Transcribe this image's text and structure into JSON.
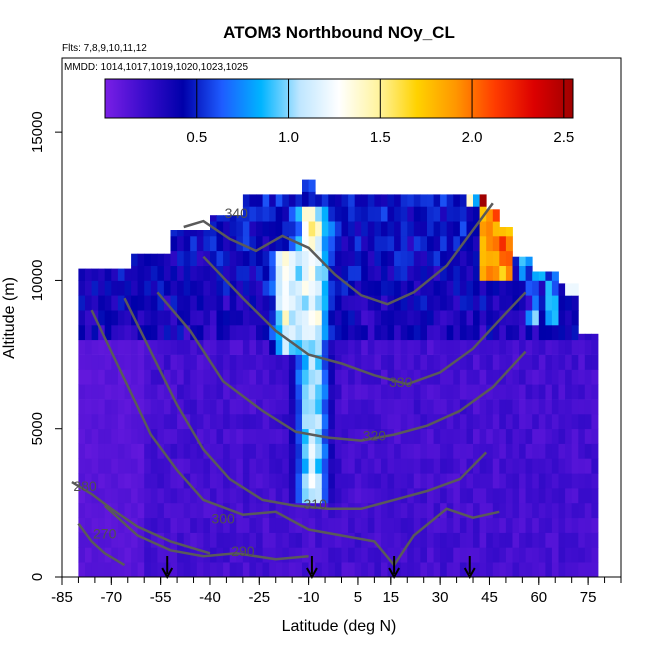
{
  "chart_data": {
    "type": "heatmap",
    "title": "ATOM3 Northbound NOy_CL",
    "flights_label": "Flts: 7,8,9,10,11,12",
    "mmdd_label": "MMDD: 1014,1017,1019,1020,1023,1025",
    "xlabel": "Latitude (deg N)",
    "ylabel": "Altitude (m)",
    "xlim": [
      -85,
      85
    ],
    "ylim": [
      0,
      17500
    ],
    "x_ticks": [
      "-85",
      "-70",
      "-55",
      "-40",
      "-25",
      "-10",
      "5",
      "15",
      "30",
      "45",
      "60",
      "75"
    ],
    "x_tick_values": [
      -85,
      -70,
      -55,
      -40,
      -25,
      -10,
      5,
      15,
      30,
      45,
      60,
      75
    ],
    "y_ticks": [
      "0",
      "5000",
      "10000",
      "15000"
    ],
    "y_tick_values": [
      0,
      5000,
      10000,
      15000
    ],
    "colorbar": {
      "min": 0.0,
      "max": 2.55,
      "ticks": [
        "0.5",
        "1.0",
        "1.5",
        "2.0",
        "2.5"
      ],
      "tick_values": [
        0.5,
        1.0,
        1.5,
        2.0,
        2.5
      ],
      "colors": [
        "#7a1fe6",
        "#3a0ccc",
        "#0000aa",
        "#1e5cff",
        "#00b4ff",
        "#bfe6ff",
        "#ffffff",
        "#fff4a0",
        "#ffd200",
        "#ff9600",
        "#ff3c00",
        "#dc0000",
        "#a00000"
      ]
    },
    "theta_contours": [
      {
        "label": "270",
        "points": [
          [
            -80,
            1800
          ],
          [
            -76,
            1200
          ],
          [
            -72,
            800
          ],
          [
            -66,
            400
          ]
        ]
      },
      {
        "label": "280",
        "points": [
          [
            -82,
            3200
          ],
          [
            -76,
            2800
          ],
          [
            -70,
            2300
          ],
          [
            -62,
            1700
          ],
          [
            -52,
            1200
          ],
          [
            -40,
            800
          ]
        ]
      },
      {
        "label": "290",
        "points": [
          [
            -72,
            2400
          ],
          [
            -62,
            1400
          ],
          [
            -52,
            900
          ],
          [
            -42,
            700
          ],
          [
            -32,
            800
          ],
          [
            -20,
            600
          ],
          [
            -10,
            700
          ]
        ]
      },
      {
        "label": "300",
        "points": [
          [
            -76,
            9000
          ],
          [
            -70,
            7600
          ],
          [
            -64,
            6200
          ],
          [
            -58,
            4800
          ],
          [
            -50,
            3600
          ],
          [
            -42,
            2600
          ],
          [
            -30,
            2100
          ],
          [
            -20,
            2200
          ],
          [
            -10,
            1600
          ],
          [
            0,
            1400
          ],
          [
            10,
            1200
          ],
          [
            16,
            400
          ],
          [
            22,
            1400
          ],
          [
            32,
            2300
          ],
          [
            40,
            2000
          ],
          [
            48,
            2200
          ]
        ]
      },
      {
        "label": "310",
        "points": [
          [
            -66,
            9400
          ],
          [
            -58,
            7600
          ],
          [
            -50,
            5800
          ],
          [
            -42,
            4300
          ],
          [
            -34,
            3300
          ],
          [
            -24,
            2600
          ],
          [
            -14,
            2400
          ],
          [
            -4,
            2300
          ],
          [
            6,
            2300
          ],
          [
            16,
            2600
          ],
          [
            26,
            2900
          ],
          [
            36,
            3300
          ],
          [
            44,
            4200
          ]
        ]
      },
      {
        "label": "320",
        "points": [
          [
            -56,
            9600
          ],
          [
            -46,
            8300
          ],
          [
            -36,
            6600
          ],
          [
            -24,
            5600
          ],
          [
            -14,
            4900
          ],
          [
            -4,
            4700
          ],
          [
            6,
            4600
          ],
          [
            16,
            4800
          ],
          [
            26,
            5100
          ],
          [
            36,
            5600
          ],
          [
            46,
            6400
          ],
          [
            56,
            7600
          ]
        ]
      },
      {
        "label": "330",
        "points": [
          [
            -42,
            10800
          ],
          [
            -30,
            9400
          ],
          [
            -20,
            8300
          ],
          [
            -10,
            7500
          ],
          [
            0,
            7200
          ],
          [
            10,
            6800
          ],
          [
            20,
            6500
          ],
          [
            30,
            6900
          ],
          [
            40,
            7700
          ],
          [
            50,
            8900
          ],
          [
            56,
            9600
          ]
        ]
      },
      {
        "label": "340",
        "points": [
          [
            -48,
            11800
          ],
          [
            -42,
            12000
          ],
          [
            -34,
            11400
          ],
          [
            -26,
            11000
          ],
          [
            -18,
            11500
          ],
          [
            -10,
            11100
          ],
          [
            -2,
            10200
          ],
          [
            6,
            9500
          ],
          [
            14,
            9200
          ],
          [
            22,
            9600
          ],
          [
            32,
            10500
          ],
          [
            40,
            11700
          ],
          [
            46,
            12600
          ]
        ]
      }
    ],
    "contour_label_positions": {
      "270": [
        -72,
        1300
      ],
      "280": [
        -78,
        2900
      ],
      "290": [
        -30,
        700
      ],
      "300": [
        -36,
        1800
      ],
      "310": [
        -8,
        2300
      ],
      "320": [
        10,
        4600
      ],
      "330": [
        18,
        6400
      ],
      "340": [
        -32,
        12100
      ]
    },
    "flight_arrows_lat": [
      -53,
      -9,
      16,
      39
    ]
  }
}
